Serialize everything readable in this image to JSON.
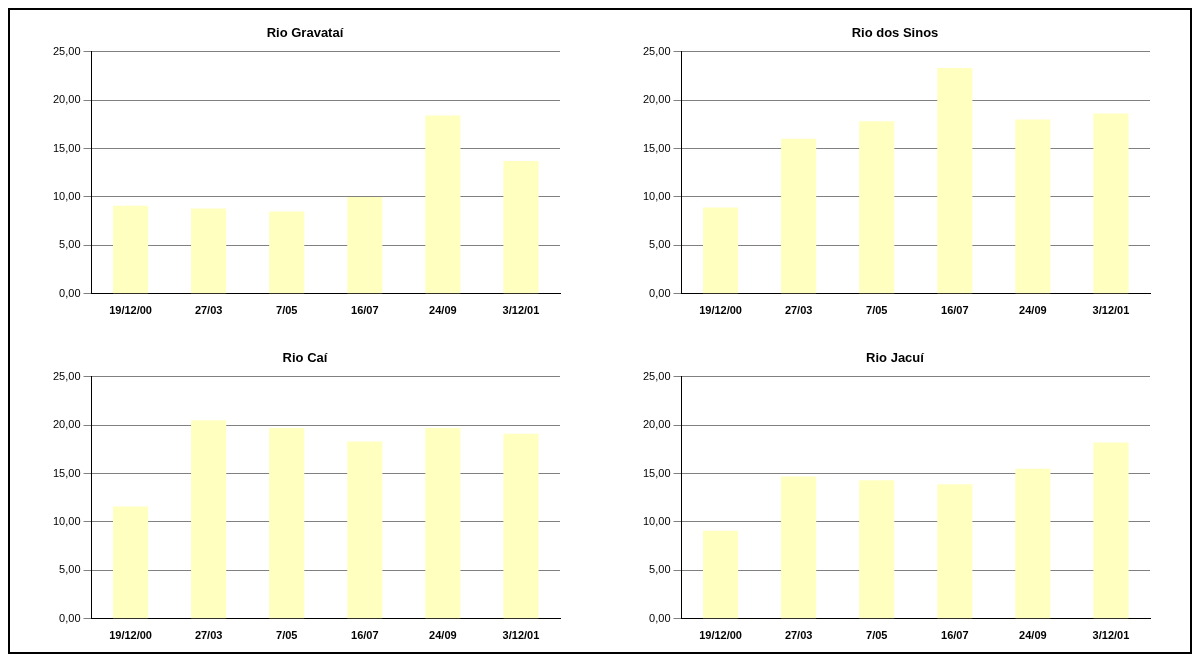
{
  "chart_data": [
    {
      "type": "bar",
      "title": "Rio Gravataí",
      "categories": [
        "19/12/00",
        "27/03",
        "7/05",
        "16/07",
        "24/09",
        "3/12/01"
      ],
      "values": [
        9.1,
        8.8,
        8.5,
        10.0,
        18.4,
        13.7
      ],
      "color": "#ffffc0",
      "ylim": [
        0,
        25
      ],
      "yticks": [
        {
          "value": 0,
          "label": "0,00"
        },
        {
          "value": 5,
          "label": "5,00"
        },
        {
          "value": 10,
          "label": "10,00"
        },
        {
          "value": 15,
          "label": "15,00"
        },
        {
          "value": 20,
          "label": "20,00"
        },
        {
          "value": 25,
          "label": "25,00"
        }
      ],
      "grid": "y",
      "legend": false
    },
    {
      "type": "bar",
      "title": "Rio dos Sinos",
      "categories": [
        "19/12/00",
        "27/03",
        "7/05",
        "16/07",
        "24/09",
        "3/12/01"
      ],
      "values": [
        8.9,
        16.0,
        17.8,
        23.3,
        18.0,
        18.6
      ],
      "color": "#ffffc0",
      "ylim": [
        0,
        25
      ],
      "yticks": [
        {
          "value": 0,
          "label": "0,00"
        },
        {
          "value": 5,
          "label": "5,00"
        },
        {
          "value": 10,
          "label": "10,00"
        },
        {
          "value": 15,
          "label": "15,00"
        },
        {
          "value": 20,
          "label": "20,00"
        },
        {
          "value": 25,
          "label": "25,00"
        }
      ],
      "grid": "y",
      "legend": false
    },
    {
      "type": "bar",
      "title": "Rio Caí",
      "categories": [
        "19/12/00",
        "27/03",
        "7/05",
        "16/07",
        "24/09",
        "3/12/01"
      ],
      "values": [
        11.6,
        20.5,
        19.7,
        18.3,
        19.7,
        19.1
      ],
      "color": "#ffffc0",
      "ylim": [
        0,
        25
      ],
      "yticks": [
        {
          "value": 0,
          "label": "0,00"
        },
        {
          "value": 5,
          "label": "5,00"
        },
        {
          "value": 10,
          "label": "10,00"
        },
        {
          "value": 15,
          "label": "15,00"
        },
        {
          "value": 20,
          "label": "20,00"
        },
        {
          "value": 25,
          "label": "25,00"
        }
      ],
      "grid": "y",
      "legend": false
    },
    {
      "type": "bar",
      "title": "Rio Jacuí",
      "categories": [
        "19/12/00",
        "27/03",
        "7/05",
        "16/07",
        "24/09",
        "3/12/01"
      ],
      "values": [
        9.1,
        14.7,
        14.3,
        13.9,
        15.5,
        18.2
      ],
      "color": "#ffffc0",
      "ylim": [
        0,
        25
      ],
      "yticks": [
        {
          "value": 0,
          "label": "0,00"
        },
        {
          "value": 5,
          "label": "5,00"
        },
        {
          "value": 10,
          "label": "10,00"
        },
        {
          "value": 15,
          "label": "15,00"
        },
        {
          "value": 20,
          "label": "20,00"
        },
        {
          "value": 25,
          "label": "25,00"
        }
      ],
      "grid": "y",
      "legend": false
    }
  ]
}
